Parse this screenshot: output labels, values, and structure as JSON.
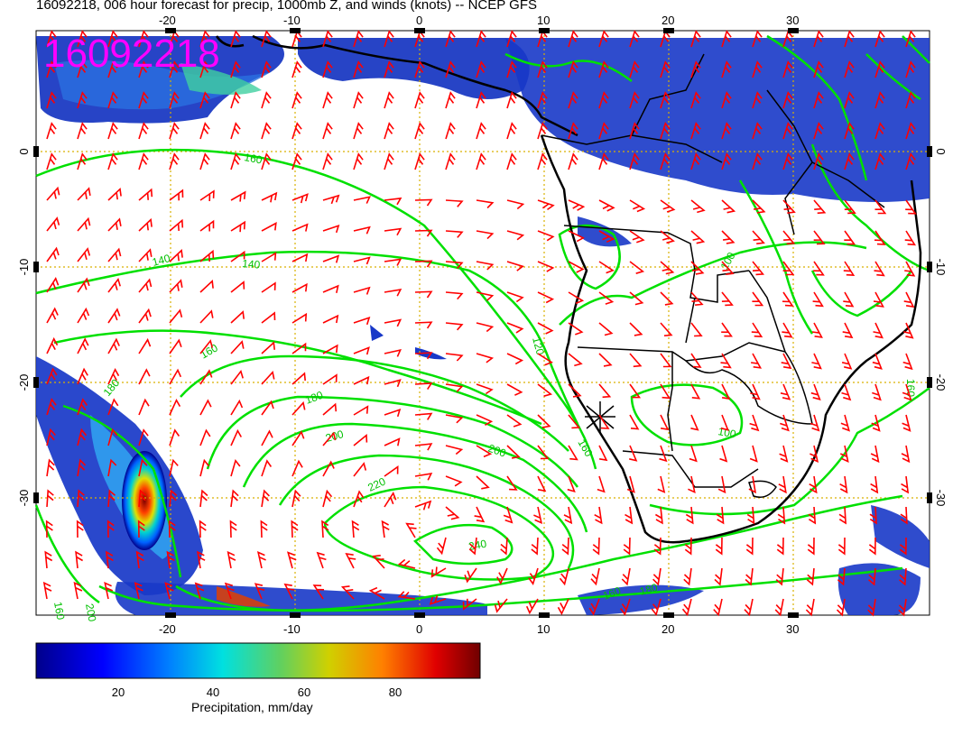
{
  "title": "16092218, 006 hour forecast for precip, 1000mb Z, and winds (knots) -- NCEP GFS",
  "stamp": "16092218",
  "map": {
    "lon_ticks": [
      "-20",
      "-10",
      "0",
      "10",
      "20",
      "30"
    ],
    "lat_ticks": [
      "0",
      "-10",
      "-20",
      "-30"
    ],
    "colors": {
      "grid": "#d9b000",
      "barbs": "#ff0000",
      "contours": "#00e000",
      "coast": "#000000",
      "stamp": "#ff00ff"
    },
    "contour_labels": [
      "160",
      "140",
      "140",
      "160",
      "180",
      "200",
      "220",
      "240",
      "200",
      "120",
      "160",
      "100",
      "160",
      "180",
      "200",
      "160",
      "180",
      "160",
      "100"
    ]
  },
  "colorbar": {
    "label": "Precipitation, mm/day",
    "ticks": [
      "20",
      "40",
      "60",
      "80"
    ]
  }
}
